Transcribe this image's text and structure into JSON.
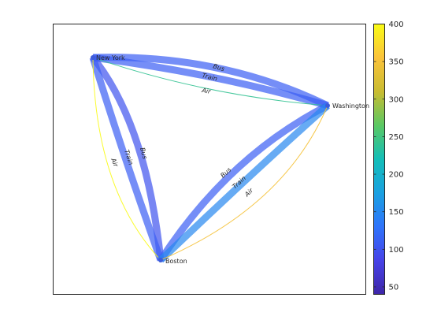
{
  "nodes": [
    {
      "id": "new-york",
      "label": "New York"
    },
    {
      "id": "washington",
      "label": "Washington"
    },
    {
      "id": "boston",
      "label": "Boston"
    }
  ],
  "edges": [
    {
      "id": "ny-wa-bus",
      "from": "new-york",
      "to": "washington",
      "label": "Bus",
      "value": 110
    },
    {
      "id": "ny-wa-train",
      "from": "new-york",
      "to": "washington",
      "label": "Train",
      "value": 110
    },
    {
      "id": "ny-wa-air",
      "from": "new-york",
      "to": "washington",
      "label": "Air",
      "value": 240
    },
    {
      "id": "ny-bo-bus",
      "from": "new-york",
      "to": "boston",
      "label": "Bus",
      "value": 100
    },
    {
      "id": "ny-bo-train",
      "from": "new-york",
      "to": "boston",
      "label": "Train",
      "value": 110
    },
    {
      "id": "ny-bo-air",
      "from": "new-york",
      "to": "boston",
      "label": "Air",
      "value": 400
    },
    {
      "id": "bo-wa-bus",
      "from": "boston",
      "to": "washington",
      "label": "Bus",
      "value": 110
    },
    {
      "id": "bo-wa-train",
      "from": "boston",
      "to": "washington",
      "label": "Train",
      "value": 150
    },
    {
      "id": "bo-wa-air",
      "from": "boston",
      "to": "washington",
      "label": "Air",
      "value": 350
    }
  ],
  "colorbar": {
    "min": 40,
    "max": 400,
    "ticks": [
      "400",
      "350",
      "300",
      "250",
      "200",
      "150",
      "100",
      "50"
    ],
    "tick_values": [
      400,
      350,
      300,
      250,
      200,
      150,
      100,
      50
    ]
  },
  "colors": {
    "node_marker": "#3d5bd9",
    "axes": "#262626",
    "edge_alpha": "0.7"
  }
}
